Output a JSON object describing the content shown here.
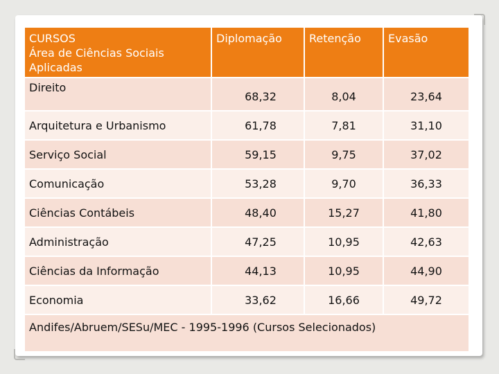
{
  "table": {
    "header": {
      "course_lines": [
        "CURSOS",
        "Área de Ciências Sociais",
        "Aplicadas"
      ],
      "col_diplomacao": "Diplomação",
      "col_retencao": "Retenção",
      "col_evasao": "Evasão"
    },
    "rows": [
      {
        "course": "Direito",
        "diplomacao": "68,32",
        "retencao": "8,04",
        "evasao": "23,64"
      },
      {
        "course": "Arquitetura e Urbanismo",
        "diplomacao": "61,78",
        "retencao": "7,81",
        "evasao": "31,10"
      },
      {
        "course": "Serviço Social",
        "diplomacao": "59,15",
        "retencao": "9,75",
        "evasao": "37,02"
      },
      {
        "course": "Comunicação",
        "diplomacao": "53,28",
        "retencao": "9,70",
        "evasao": "36,33"
      },
      {
        "course": "Ciências Contábeis",
        "diplomacao": "48,40",
        "retencao": "15,27",
        "evasao": "41,80"
      },
      {
        "course": "Administração",
        "diplomacao": "47,25",
        "retencao": "10,95",
        "evasao": "42,63"
      },
      {
        "course": "Ciências da Informação",
        "diplomacao": "44,13",
        "retencao": "10,95",
        "evasao": "44,90"
      },
      {
        "course": "Economia",
        "diplomacao": "33,62",
        "retencao": "16,66",
        "evasao": "49,72"
      }
    ],
    "source": "Andifes/Abruem/SESu/MEC - 1995-1996 (Cursos Selecionados)"
  },
  "colors": {
    "header_bg": "#ee7e14",
    "row_odd": "#f7dfd5",
    "row_even": "#fbefe9"
  }
}
